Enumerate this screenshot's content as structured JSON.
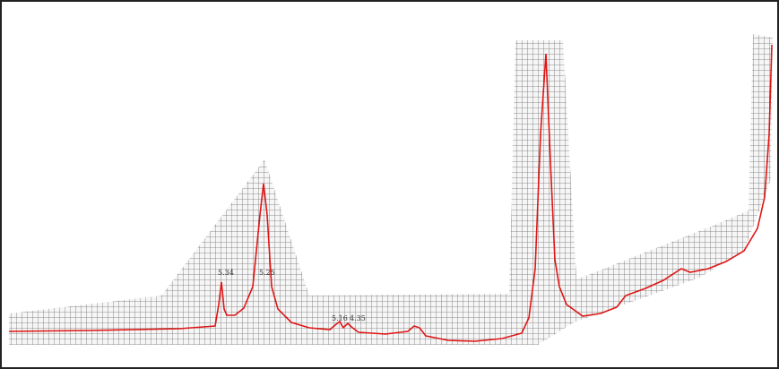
{
  "annotations": {
    "labels": [
      "5.34",
      "5.25",
      "5.16",
      "4.35"
    ]
  }
}
